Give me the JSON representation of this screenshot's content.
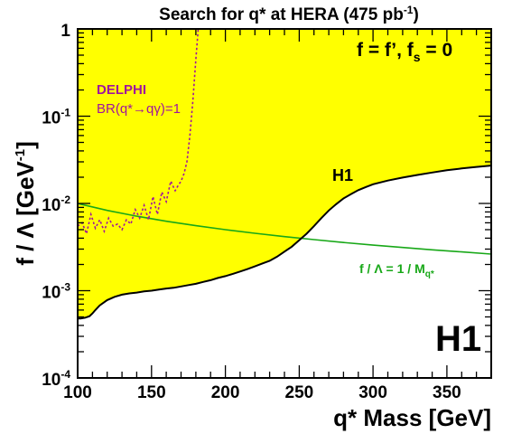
{
  "chart_data": {
    "type": "line",
    "title_main": "Search for q* at HERA (475 pb",
    "title_exp": "-1",
    "title_close": ")",
    "xlabel": "q* Mass [GeV]",
    "ylabel_main": "f / Λ [GeV",
    "ylabel_exp": "-1",
    "ylabel_close": "]",
    "x_scale": "linear",
    "y_scale": "log",
    "xlim": [
      100,
      380
    ],
    "ylim": [
      0.0001,
      1
    ],
    "x_ticks": [
      {
        "value": 100,
        "label": "100"
      },
      {
        "value": 150,
        "label": "150"
      },
      {
        "value": 200,
        "label": "200"
      },
      {
        "value": 250,
        "label": "250"
      },
      {
        "value": 300,
        "label": "300"
      },
      {
        "value": 350,
        "label": "350"
      }
    ],
    "y_ticks": [
      {
        "value": 0.0001,
        "base": "10",
        "exp": "-4"
      },
      {
        "value": 0.001,
        "base": "10",
        "exp": "-3"
      },
      {
        "value": 0.01,
        "base": "10",
        "exp": "-2"
      },
      {
        "value": 0.1,
        "base": "10",
        "exp": "-1"
      },
      {
        "value": 1,
        "base": "1",
        "exp": ""
      }
    ],
    "colors": {
      "excluded_fill": "#ffff00",
      "h1_limit": "#000000",
      "delphi": "#a0169c",
      "theory": "#18a818",
      "frame": "#000000"
    },
    "series": [
      {
        "name": "H1",
        "style": "solid-black-excluded-above",
        "x": [
          100,
          102,
          105,
          108,
          110,
          112,
          115,
          120,
          125,
          130,
          135,
          140,
          145,
          150,
          155,
          160,
          165,
          170,
          175,
          180,
          185,
          190,
          195,
          200,
          205,
          210,
          215,
          220,
          225,
          230,
          235,
          240,
          245,
          250,
          255,
          260,
          265,
          270,
          275,
          280,
          285,
          290,
          295,
          300,
          310,
          320,
          330,
          340,
          350,
          360,
          370,
          380
        ],
        "y": [
          0.00048,
          0.00048,
          0.00049,
          0.00051,
          0.00055,
          0.0006,
          0.00068,
          0.00078,
          0.00085,
          0.0009,
          0.00093,
          0.00095,
          0.00098,
          0.001,
          0.00103,
          0.00106,
          0.00108,
          0.00112,
          0.00116,
          0.0012,
          0.00126,
          0.00132,
          0.0014,
          0.00147,
          0.00156,
          0.00166,
          0.00177,
          0.0019,
          0.00205,
          0.0022,
          0.00245,
          0.0028,
          0.0032,
          0.0038,
          0.0045,
          0.0055,
          0.0068,
          0.0083,
          0.0098,
          0.0114,
          0.0128,
          0.0142,
          0.0154,
          0.0166,
          0.0183,
          0.0198,
          0.0212,
          0.0226,
          0.024,
          0.0252,
          0.0262,
          0.0272
        ]
      },
      {
        "name": "DELPHI",
        "style": "dotted-magenta",
        "x": [
          100,
          103,
          106,
          109,
          112,
          115,
          118,
          121,
          124,
          127,
          130,
          133,
          136,
          139,
          142,
          145,
          148,
          151,
          154,
          157,
          160,
          163,
          166,
          168,
          170,
          172,
          174,
          176,
          178,
          180,
          182,
          183
        ],
        "y": [
          0.0055,
          0.006,
          0.0045,
          0.0075,
          0.0052,
          0.0065,
          0.0048,
          0.0068,
          0.0055,
          0.0058,
          0.005,
          0.0065,
          0.0058,
          0.0085,
          0.0068,
          0.0095,
          0.0065,
          0.012,
          0.0075,
          0.0135,
          0.0105,
          0.018,
          0.014,
          0.016,
          0.018,
          0.022,
          0.03,
          0.06,
          0.15,
          0.45,
          1.2,
          1.6
        ]
      },
      {
        "name": "f / Λ = 1 / M_q*",
        "style": "solid-green",
        "x": [
          100,
          120,
          140,
          160,
          180,
          200,
          220,
          240,
          260,
          280,
          300,
          320,
          340,
          360,
          380
        ],
        "y": [
          0.01,
          0.00833,
          0.00714,
          0.00625,
          0.00556,
          0.005,
          0.00455,
          0.00417,
          0.00385,
          0.00357,
          0.00333,
          0.00313,
          0.00294,
          0.00278,
          0.00263
        ]
      }
    ],
    "annotations": {
      "coupling_main": "f = f’, f",
      "coupling_sub": "s",
      "coupling_tail": " = 0",
      "h1_curve": "H1",
      "h1_logo": "H1",
      "delphi_name": "DELPHI",
      "delphi_br": "BR(q*→qγ)=1",
      "theory_main": "f / Λ  = 1 / M",
      "theory_sub": "q*"
    }
  }
}
